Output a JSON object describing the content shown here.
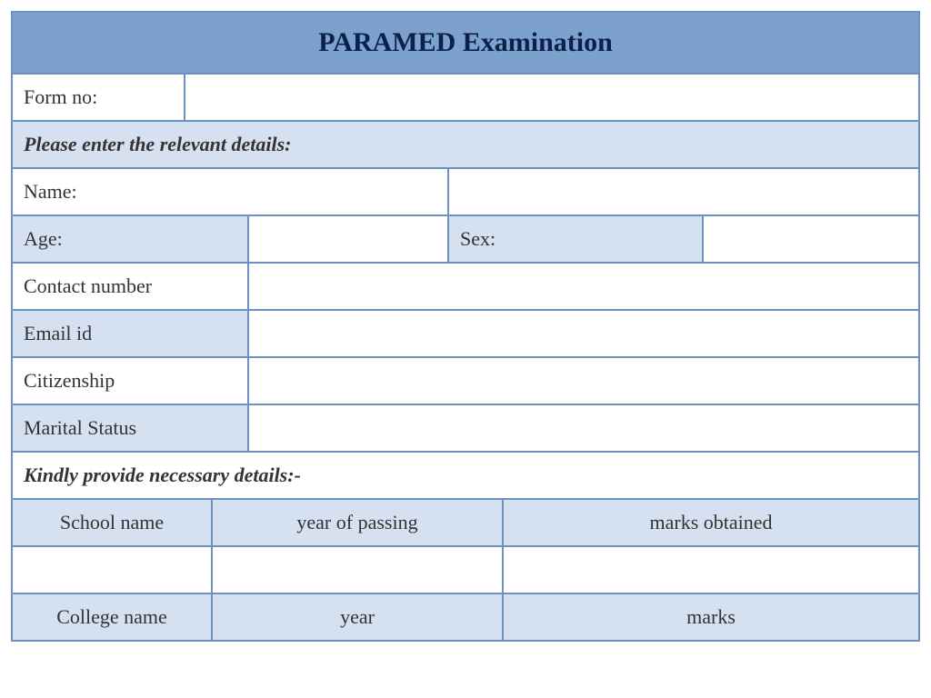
{
  "title": "PARAMED Examination",
  "form_no_label": "Form no:",
  "form_no_value": "",
  "instructions1": "Please enter the relevant details:",
  "name_label": "Name:",
  "name_value": "",
  "age_label": "Age:",
  "age_value": "",
  "sex_label": "Sex:",
  "sex_value": "",
  "contact_label": "Contact number",
  "contact_value": "",
  "email_label": "Email id",
  "email_value": "",
  "citizenship_label": "Citizenship",
  "citizenship_value": "",
  "marital_label": "Marital Status",
  "marital_value": "",
  "instructions2": "Kindly provide necessary details:-",
  "school_col1": "School name",
  "school_col2": "year of passing",
  "school_col3": "marks obtained",
  "college_col1": "College name",
  "college_col2": "year",
  "college_col3": "marks",
  "colors": {
    "header_bg": "#7ca1ce",
    "light_blue": "#d5e0f1",
    "border": "#6c92be",
    "header_text": "#0b2149"
  }
}
